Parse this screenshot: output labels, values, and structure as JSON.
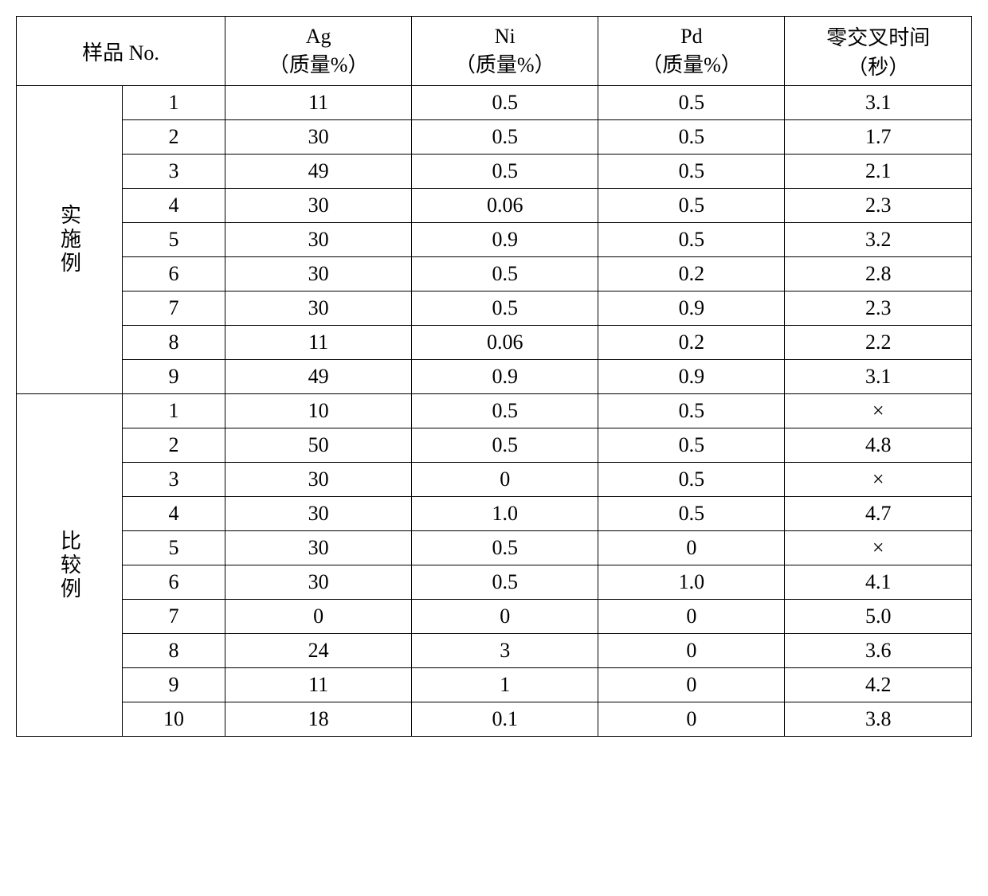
{
  "table": {
    "headers": {
      "sample_no": "样品 No.",
      "ag": {
        "line1": "Ag",
        "line2": "（质量%）"
      },
      "ni": {
        "line1": "Ni",
        "line2": "（质量%）"
      },
      "pd": {
        "line1": "Pd",
        "line2": "（质量%）"
      },
      "zero_cross": {
        "line1": "零交叉时间",
        "line2": "（秒）"
      }
    },
    "groups": [
      {
        "label": "实施例",
        "rows": [
          {
            "no": "1",
            "ag": "11",
            "ni": "0.5",
            "pd": "0.5",
            "zc": "3.1"
          },
          {
            "no": "2",
            "ag": "30",
            "ni": "0.5",
            "pd": "0.5",
            "zc": "1.7"
          },
          {
            "no": "3",
            "ag": "49",
            "ni": "0.5",
            "pd": "0.5",
            "zc": "2.1"
          },
          {
            "no": "4",
            "ag": "30",
            "ni": "0.06",
            "pd": "0.5",
            "zc": "2.3"
          },
          {
            "no": "5",
            "ag": "30",
            "ni": "0.9",
            "pd": "0.5",
            "zc": "3.2"
          },
          {
            "no": "6",
            "ag": "30",
            "ni": "0.5",
            "pd": "0.2",
            "zc": "2.8"
          },
          {
            "no": "7",
            "ag": "30",
            "ni": "0.5",
            "pd": "0.9",
            "zc": "2.3"
          },
          {
            "no": "8",
            "ag": "11",
            "ni": "0.06",
            "pd": "0.2",
            "zc": "2.2"
          },
          {
            "no": "9",
            "ag": "49",
            "ni": "0.9",
            "pd": "0.9",
            "zc": "3.1"
          }
        ]
      },
      {
        "label": "比较例",
        "rows": [
          {
            "no": "1",
            "ag": "10",
            "ni": "0.5",
            "pd": "0.5",
            "zc": "×"
          },
          {
            "no": "2",
            "ag": "50",
            "ni": "0.5",
            "pd": "0.5",
            "zc": "4.8"
          },
          {
            "no": "3",
            "ag": "30",
            "ni": "0",
            "pd": "0.5",
            "zc": "×"
          },
          {
            "no": "4",
            "ag": "30",
            "ni": "1.0",
            "pd": "0.5",
            "zc": "4.7"
          },
          {
            "no": "5",
            "ag": "30",
            "ni": "0.5",
            "pd": "0",
            "zc": "×"
          },
          {
            "no": "6",
            "ag": "30",
            "ni": "0.5",
            "pd": "1.0",
            "zc": "4.1"
          },
          {
            "no": "7",
            "ag": "0",
            "ni": "0",
            "pd": "0",
            "zc": "5.0"
          },
          {
            "no": "8",
            "ag": "24",
            "ni": "3",
            "pd": "0",
            "zc": "3.6"
          },
          {
            "no": "9",
            "ag": "11",
            "ni": "1",
            "pd": "0",
            "zc": "4.2"
          },
          {
            "no": "10",
            "ag": "18",
            "ni": "0.1",
            "pd": "0",
            "zc": "3.8"
          }
        ]
      }
    ],
    "styling": {
      "border_color": "#000000",
      "background_color": "#ffffff",
      "text_color": "#000000",
      "font_size": 26,
      "col_widths": {
        "group": 115,
        "no": 115,
        "data": 225
      }
    }
  }
}
